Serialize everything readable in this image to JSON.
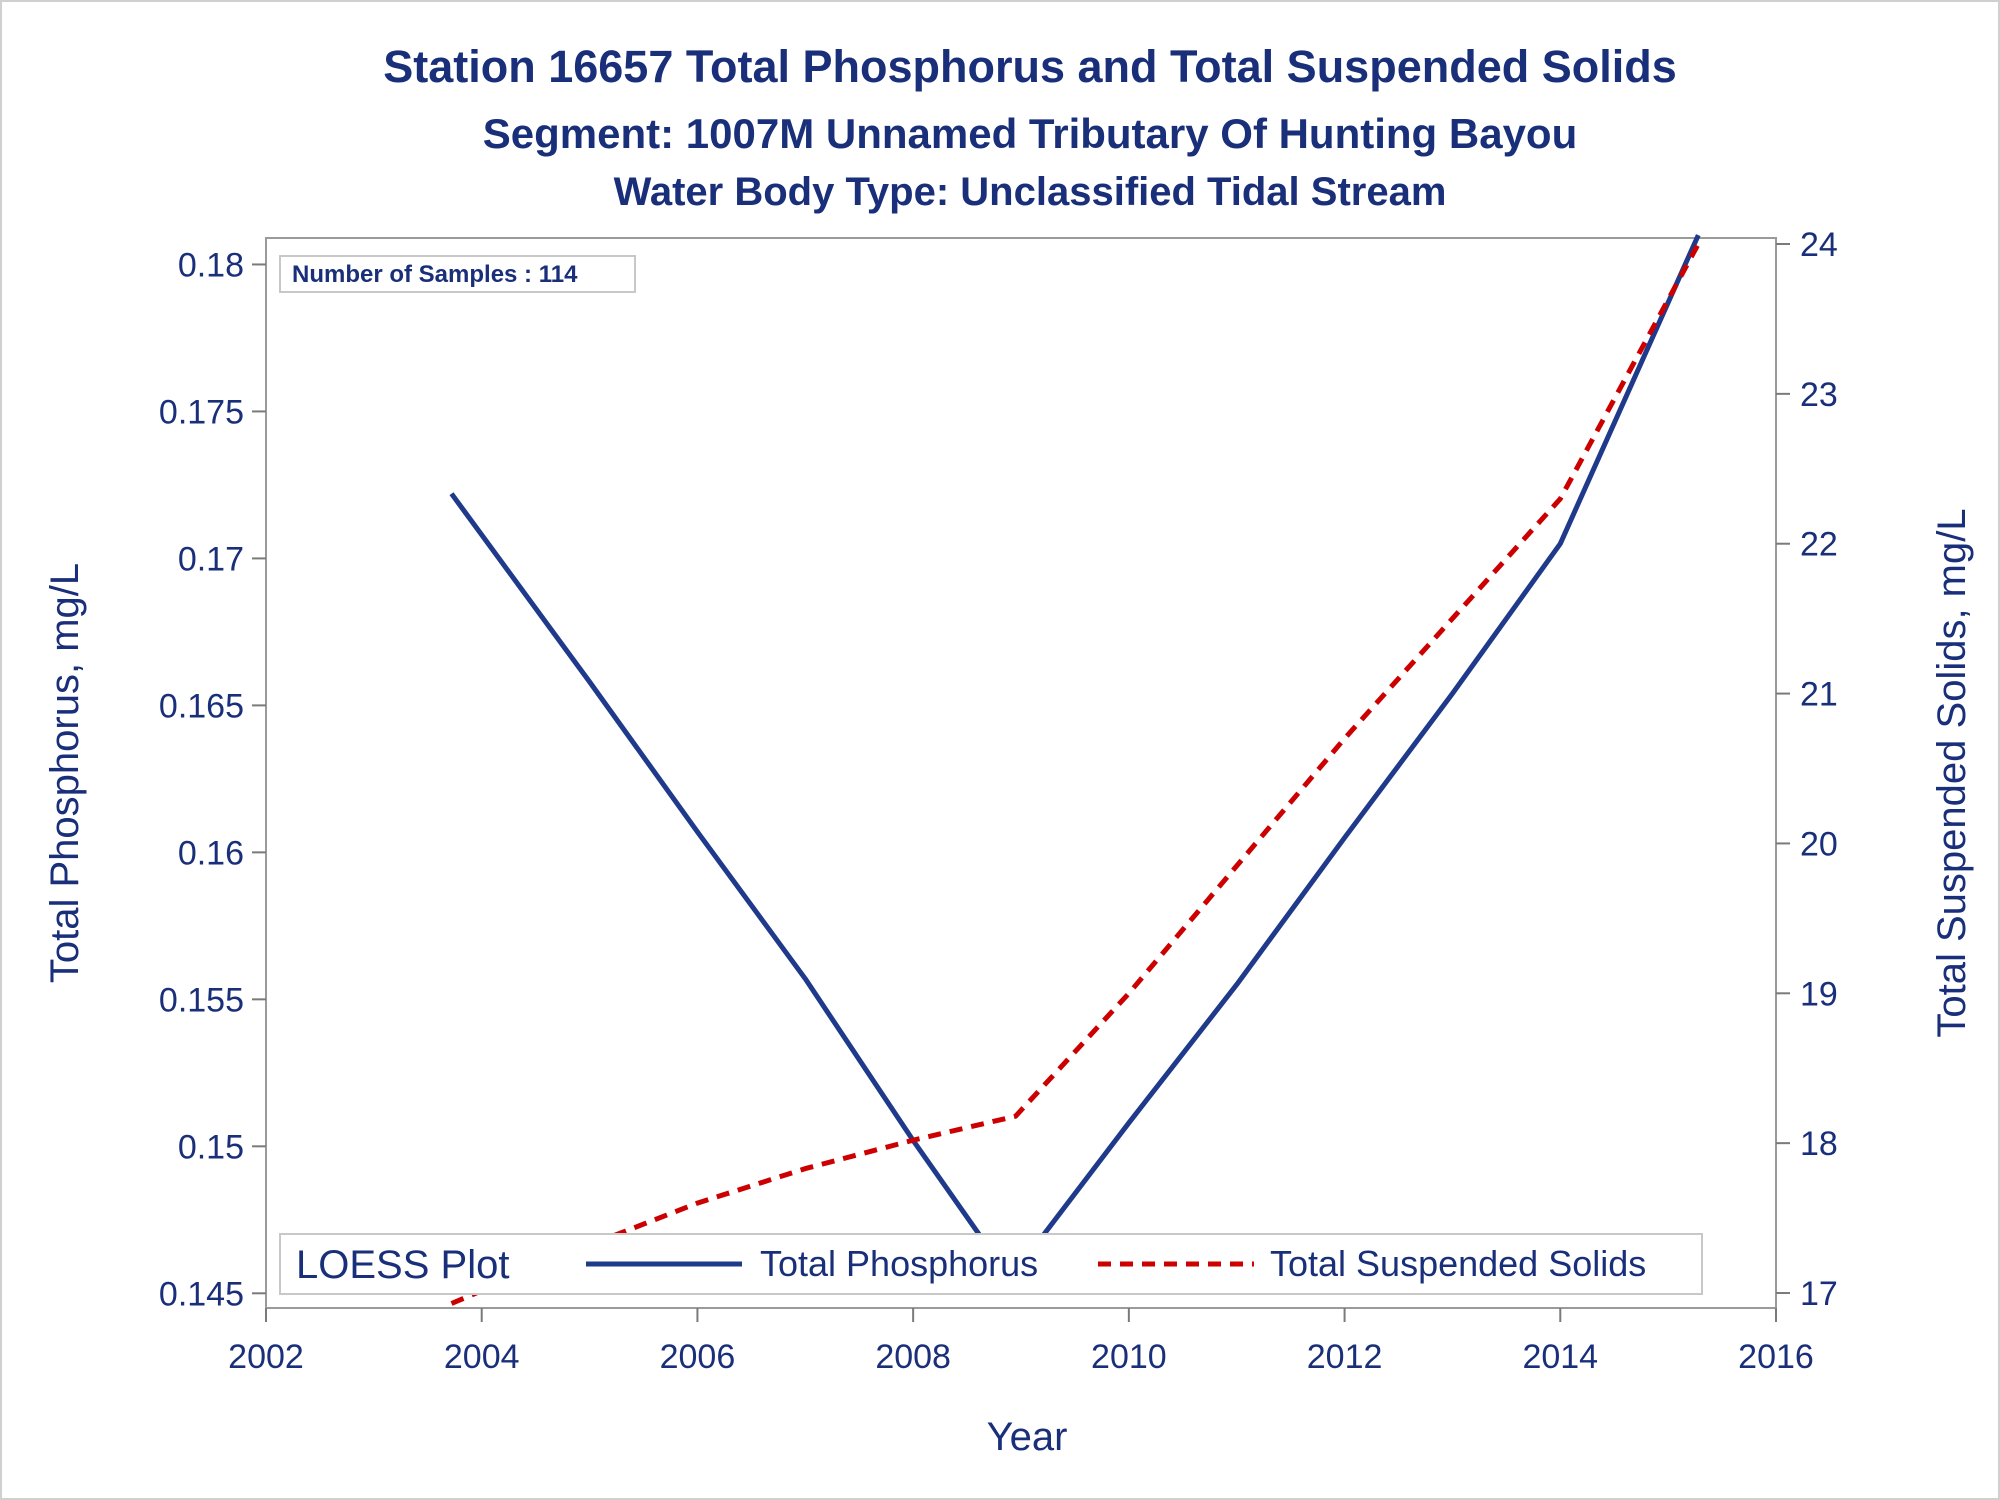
{
  "chart_data": {
    "type": "line",
    "title": "Station 16657  Total Phosphorus and Total Suspended Solids",
    "subtitle": "Segment: 1007M  Unnamed Tributary Of Hunting Bayou",
    "subtitle2": "Water Body Type: Unclassified Tidal Stream",
    "annotation": "Number of Samples : 114",
    "xlabel": "Year",
    "ylabel_left": "Total Phosphorus, mg/L",
    "ylabel_right": "Total Suspended Solids, mg/L",
    "xlim": [
      2002,
      2016
    ],
    "ylim_left": [
      0.1445,
      0.1809
    ],
    "ylim_right": [
      16.9,
      24.04
    ],
    "x_ticks": [
      "2002",
      "2004",
      "2006",
      "2008",
      "2010",
      "2012",
      "2014",
      "2016"
    ],
    "y_left_ticks": [
      "0.145",
      "0.15",
      "0.155",
      "0.16",
      "0.165",
      "0.17",
      "0.175",
      "0.18"
    ],
    "y_right_ticks": [
      "17",
      "18",
      "19",
      "20",
      "21",
      "22",
      "23",
      "24"
    ],
    "legend": {
      "title": "LOESS Plot",
      "position": "bottom-inside",
      "entries": [
        "Total Phosphorus",
        "Total Suspended Solids"
      ]
    },
    "grid": false,
    "series": [
      {
        "name": "Total Phosphorus",
        "axis": "left",
        "color": "#1f3a8a",
        "style": "solid",
        "x": [
          2003.72,
          2005.0,
          2006.0,
          2007.0,
          2008.0,
          2008.9,
          2010.0,
          2011.0,
          2012.0,
          2013.0,
          2014.0,
          2015.28
        ],
        "y": [
          0.1722,
          0.1658,
          0.1607,
          0.1557,
          0.1502,
          0.1455,
          0.1508,
          0.1555,
          0.1605,
          0.1654,
          0.1705,
          0.181
        ]
      },
      {
        "name": "Total Suspended Solids",
        "axis": "right",
        "color": "#cc0000",
        "style": "dashed",
        "x": [
          2003.72,
          2005.0,
          2006.0,
          2007.0,
          2008.0,
          2008.95,
          2010.0,
          2011.0,
          2012.0,
          2013.0,
          2014.0,
          2015.28
        ],
        "y": [
          16.93,
          17.32,
          17.6,
          17.83,
          18.02,
          18.18,
          19.0,
          19.85,
          20.7,
          21.5,
          22.3,
          24.0
        ]
      }
    ]
  }
}
